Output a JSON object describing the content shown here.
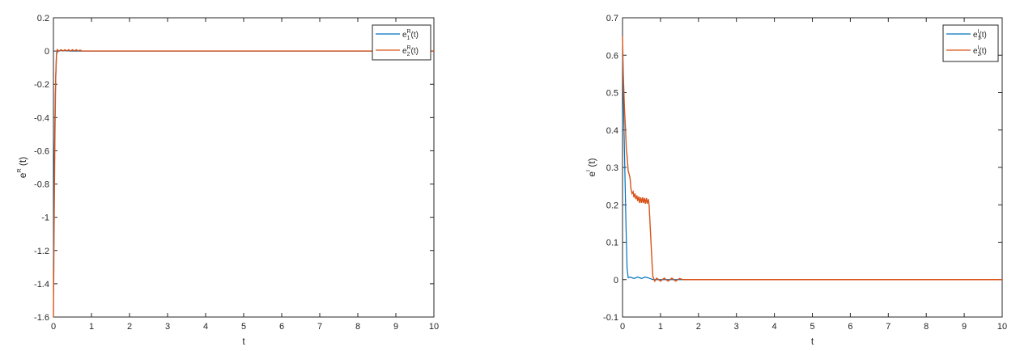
{
  "chart_data": [
    {
      "type": "line",
      "xlabel": "t",
      "ylabel_base": "e",
      "ylabel_sup": "R",
      "ylabel_rest": " (t)",
      "xlim": [
        0,
        10
      ],
      "ylim": [
        -1.6,
        0.2
      ],
      "xticks": [
        0,
        1,
        2,
        3,
        4,
        5,
        6,
        7,
        8,
        9,
        10
      ],
      "yticks": [
        -1.6,
        -1.4,
        -1.2,
        -1,
        -0.8,
        -0.6,
        -0.4,
        -0.2,
        0,
        0.2
      ],
      "xtick_labels": [
        "0",
        "1",
        "2",
        "3",
        "4",
        "5",
        "6",
        "7",
        "8",
        "9",
        "10"
      ],
      "ytick_labels": [
        "-1.6",
        "-1.4",
        "-1.2",
        "-1",
        "-0.8",
        "-0.6",
        "-0.4",
        "-0.2",
        "0",
        "0.2"
      ],
      "legend_placement": "top-right",
      "series": [
        {
          "legend_base": "e",
          "legend_sub": "1",
          "legend_sup": "R",
          "legend_rest": "(t)",
          "color": "#0072BD",
          "x": [
            0,
            0.02,
            0.05,
            0.08,
            0.12,
            0.2,
            0.5,
            1,
            3,
            6,
            10
          ],
          "y": [
            -1.3,
            -0.7,
            -0.25,
            -0.02,
            0.0,
            0.003,
            0.0,
            0.0,
            0.0,
            0.0,
            0.0
          ]
        },
        {
          "legend_base": "e",
          "legend_sub": "2",
          "legend_sup": "R",
          "legend_rest": "(t)",
          "color": "#D95319",
          "x": [
            0,
            0.02,
            0.04,
            0.06,
            0.08,
            0.1,
            0.15,
            0.2,
            0.25,
            0.3,
            0.35,
            0.4,
            0.45,
            0.5,
            0.55,
            0.6,
            0.65,
            0.7,
            0.75,
            1.0,
            2,
            4,
            6,
            8,
            10
          ],
          "y": [
            -1.6,
            -1.0,
            -0.5,
            -0.15,
            -0.02,
            0.008,
            0.0,
            0.008,
            0.0,
            0.008,
            0.0,
            0.008,
            0.0,
            0.008,
            0.0,
            0.008,
            0.0,
            0.006,
            0.0,
            0.0,
            0.0,
            0.0,
            0.0,
            0.0,
            0.0
          ]
        }
      ]
    },
    {
      "type": "line",
      "xlabel": "t",
      "ylabel_base": "e",
      "ylabel_sup": "I",
      "ylabel_rest": " (t)",
      "xlim": [
        0,
        10
      ],
      "ylim": [
        -0.1,
        0.7
      ],
      "xticks": [
        0,
        1,
        2,
        3,
        4,
        5,
        6,
        7,
        8,
        9,
        10
      ],
      "yticks": [
        -0.1,
        0,
        0.1,
        0.2,
        0.3,
        0.4,
        0.5,
        0.6,
        0.7
      ],
      "xtick_labels": [
        "0",
        "1",
        "2",
        "3",
        "4",
        "5",
        "6",
        "7",
        "8",
        "9",
        "10"
      ],
      "ytick_labels": [
        "-0.1",
        "0",
        "0.1",
        "0.2",
        "0.3",
        "0.4",
        "0.5",
        "0.6",
        "0.7"
      ],
      "legend_placement": "top-right",
      "series": [
        {
          "legend_base": "e",
          "legend_sub": "1",
          "legend_sup": "I",
          "legend_rest": "(t)",
          "color": "#0072BD",
          "x": [
            0,
            0.03,
            0.06,
            0.09,
            0.12,
            0.15,
            0.2,
            0.3,
            0.4,
            0.5,
            0.6,
            0.7,
            0.75,
            0.8,
            1.0,
            2,
            4,
            6,
            8,
            10
          ],
          "y": [
            0.6,
            0.45,
            0.3,
            0.15,
            0.03,
            0.005,
            0.007,
            0.003,
            0.007,
            0.003,
            0.007,
            0.004,
            0.002,
            0.0,
            0.0,
            0.0,
            0.0,
            0.0,
            0.0,
            0.0
          ]
        },
        {
          "legend_base": "e",
          "legend_sub": "2",
          "legend_sup": "I",
          "legend_rest": "(t)",
          "color": "#D95319",
          "x": [
            0,
            0.02,
            0.05,
            0.08,
            0.1,
            0.12,
            0.15,
            0.18,
            0.2,
            0.22,
            0.25,
            0.28,
            0.3,
            0.33,
            0.35,
            0.38,
            0.4,
            0.43,
            0.45,
            0.48,
            0.5,
            0.53,
            0.55,
            0.58,
            0.6,
            0.63,
            0.65,
            0.68,
            0.7,
            0.72,
            0.75,
            0.78,
            0.8,
            0.85,
            0.9,
            1.0,
            1.1,
            1.2,
            1.3,
            1.4,
            1.5,
            1.6,
            2,
            4,
            6,
            8,
            10
          ],
          "y": [
            0.65,
            0.55,
            0.46,
            0.4,
            0.35,
            0.33,
            0.29,
            0.28,
            0.27,
            0.245,
            0.23,
            0.235,
            0.22,
            0.23,
            0.215,
            0.225,
            0.21,
            0.222,
            0.205,
            0.22,
            0.205,
            0.22,
            0.205,
            0.218,
            0.203,
            0.218,
            0.203,
            0.215,
            0.2,
            0.16,
            0.1,
            0.04,
            0.008,
            -0.004,
            0.004,
            -0.004,
            0.004,
            -0.004,
            0.004,
            -0.004,
            0.003,
            0.0,
            0.0,
            0.0,
            0.0,
            0.0,
            0.0
          ]
        }
      ]
    }
  ]
}
